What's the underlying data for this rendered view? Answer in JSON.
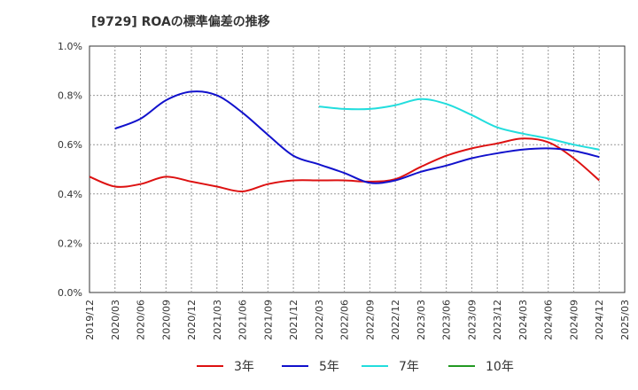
{
  "chart_data": {
    "type": "line",
    "title": "[9729]  ROAの標準偏差の推移",
    "xlabel": "",
    "ylabel": "",
    "x": [
      "2019/12",
      "2020/03",
      "2020/06",
      "2020/09",
      "2020/12",
      "2021/03",
      "2021/06",
      "2021/09",
      "2021/12",
      "2022/03",
      "2022/06",
      "2022/09",
      "2022/12",
      "2023/03",
      "2023/06",
      "2023/09",
      "2023/12",
      "2024/03",
      "2024/06",
      "2024/09",
      "2024/12",
      "2025/03"
    ],
    "ylim": [
      0,
      1.0
    ],
    "yticks": [
      "0.0%",
      "0.2%",
      "0.4%",
      "0.6%",
      "0.8%",
      "1.0%"
    ],
    "grid": true,
    "legend_position": "bottom",
    "series": [
      {
        "name": "3年",
        "color": "#dd1111",
        "values": [
          0.47,
          0.43,
          0.44,
          0.47,
          0.45,
          0.43,
          0.41,
          0.44,
          0.455,
          0.455,
          0.455,
          0.45,
          0.46,
          0.51,
          0.555,
          0.585,
          0.605,
          0.625,
          0.61,
          0.545,
          0.455,
          null
        ]
      },
      {
        "name": "5年",
        "color": "#1111cc",
        "values": [
          null,
          0.665,
          0.705,
          0.78,
          0.815,
          0.8,
          0.73,
          0.64,
          0.555,
          0.52,
          0.485,
          0.445,
          0.455,
          0.49,
          0.515,
          0.545,
          0.565,
          0.58,
          0.585,
          0.575,
          0.55,
          null
        ]
      },
      {
        "name": "7年",
        "color": "#22dddd",
        "values": [
          null,
          null,
          null,
          null,
          null,
          null,
          null,
          null,
          null,
          0.755,
          0.745,
          0.745,
          0.76,
          0.785,
          0.765,
          0.72,
          0.67,
          0.645,
          0.625,
          0.6,
          0.58,
          null
        ]
      },
      {
        "name": "10年",
        "color": "#229922",
        "values": [
          null,
          null,
          null,
          null,
          null,
          null,
          null,
          null,
          null,
          null,
          null,
          null,
          null,
          null,
          null,
          null,
          null,
          null,
          null,
          null,
          null,
          null
        ]
      }
    ]
  }
}
